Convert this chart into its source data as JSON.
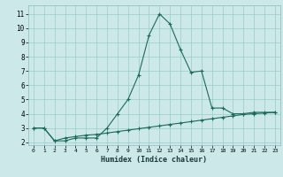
{
  "xlabel": "Humidex (Indice chaleur)",
  "background_color": "#cce8e8",
  "grid_color": "#99cccc",
  "line_color": "#1a6b5a",
  "x_values": [
    0,
    1,
    2,
    3,
    4,
    5,
    6,
    7,
    8,
    9,
    10,
    11,
    12,
    13,
    14,
    15,
    16,
    17,
    18,
    19,
    20,
    21,
    22,
    23
  ],
  "y1_values": [
    3.0,
    3.0,
    2.1,
    2.1,
    2.3,
    2.3,
    2.3,
    3.0,
    4.0,
    5.0,
    6.7,
    9.5,
    11.0,
    10.3,
    8.5,
    6.9,
    7.0,
    4.4,
    4.4,
    4.0,
    4.0,
    4.1,
    4.1,
    4.1
  ],
  "y2_values": [
    3.0,
    3.0,
    2.1,
    2.3,
    2.4,
    2.5,
    2.55,
    2.65,
    2.75,
    2.85,
    2.95,
    3.05,
    3.15,
    3.25,
    3.35,
    3.45,
    3.55,
    3.65,
    3.75,
    3.85,
    3.95,
    4.0,
    4.05,
    4.1
  ],
  "xlim": [
    -0.5,
    23.5
  ],
  "ylim": [
    1.8,
    11.6
  ],
  "yticks": [
    2,
    3,
    4,
    5,
    6,
    7,
    8,
    9,
    10,
    11
  ],
  "xticks": [
    0,
    1,
    2,
    3,
    4,
    5,
    6,
    7,
    8,
    9,
    10,
    11,
    12,
    13,
    14,
    15,
    16,
    17,
    18,
    19,
    20,
    21,
    22,
    23
  ]
}
